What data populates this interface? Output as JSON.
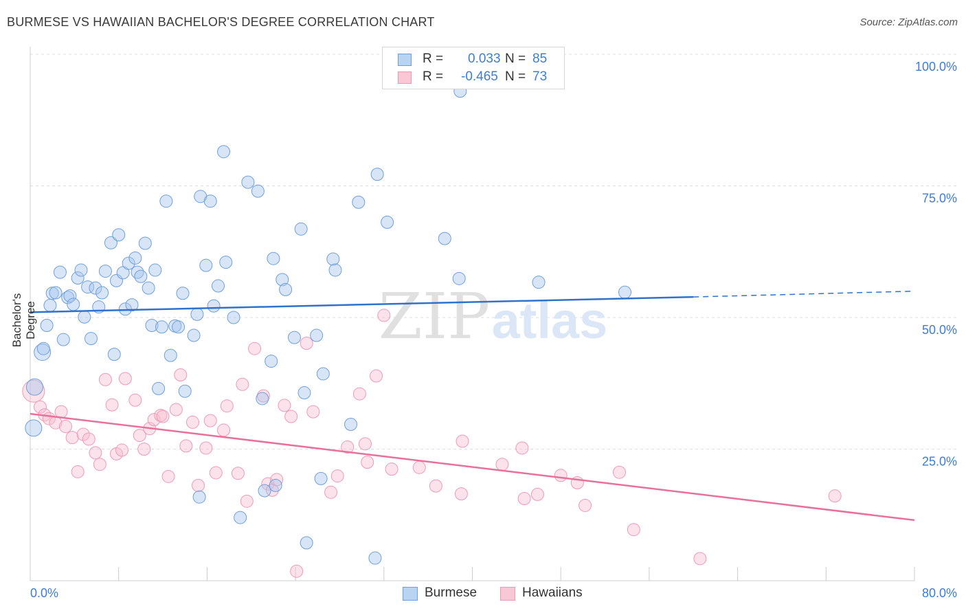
{
  "title": "BURMESE VS HAWAIIAN BACHELOR'S DEGREE CORRELATION CHART",
  "source": "Source: ZipAtlas.com",
  "watermark": {
    "zip": "ZIP",
    "atlas": "atlas"
  },
  "legend": {
    "r_label": "R =",
    "n_label": "N =",
    "rows": [
      {
        "name": "Burmese",
        "r": "0.033",
        "n": "85",
        "fill": "#b9d3f3",
        "stroke": "#6a9ee0"
      },
      {
        "name": "Hawaiians",
        "r": "-0.465",
        "n": "73",
        "fill": "#f9c7d6",
        "stroke": "#ee97b2"
      }
    ]
  },
  "colors": {
    "blue_fill": "rgba(168,198,238,0.45)",
    "blue_stroke": "#6d9fde",
    "blue_line": "#2e72cc",
    "pink_fill": "rgba(248,190,208,0.45)",
    "pink_stroke": "#ef9ab4",
    "pink_line": "#e8709a",
    "grid": "#dddddd",
    "tick_label": "#3b7dd8"
  },
  "chart_data": {
    "type": "scatter",
    "title": "BURMESE VS HAWAIIAN BACHELOR'S DEGREE CORRELATION CHART",
    "xlabel": "",
    "ylabel": "Bachelor's Degree",
    "xlim": [
      0,
      80
    ],
    "ylim": [
      0,
      100
    ],
    "x_tick_labels": [
      "0.0%",
      "80.0%"
    ],
    "y_ticks": [
      25,
      50,
      75,
      100
    ],
    "y_tick_labels": [
      "25.0%",
      "50.0%",
      "75.0%",
      "100.0%"
    ],
    "grid": true,
    "series": [
      {
        "name": "Burmese",
        "r": 0.033,
        "n": 85,
        "trend": {
          "x": [
            0,
            60
          ],
          "y": [
            51.0,
            53.9
          ],
          "dashed_to": [
            80,
            55.0
          ]
        },
        "points": [
          [
            0.4,
            36.8
          ],
          [
            0.3,
            29.0
          ],
          [
            1.1,
            43.4
          ],
          [
            1.2,
            44.1
          ],
          [
            1.5,
            48.5
          ],
          [
            1.8,
            52.3
          ],
          [
            2.0,
            54.6
          ],
          [
            2.3,
            54.7
          ],
          [
            2.7,
            58.6
          ],
          [
            3.0,
            45.8
          ],
          [
            3.4,
            53.8
          ],
          [
            3.6,
            54.1
          ],
          [
            3.9,
            52.5
          ],
          [
            4.3,
            57.5
          ],
          [
            4.6,
            59.0
          ],
          [
            4.9,
            50.1
          ],
          [
            5.2,
            55.8
          ],
          [
            5.5,
            46.0
          ],
          [
            5.9,
            55.6
          ],
          [
            6.2,
            52.0
          ],
          [
            6.5,
            54.7
          ],
          [
            6.8,
            58.8
          ],
          [
            7.3,
            64.2
          ],
          [
            7.6,
            43.0
          ],
          [
            7.8,
            57.0
          ],
          [
            8.0,
            65.7
          ],
          [
            8.4,
            58.5
          ],
          [
            8.6,
            51.6
          ],
          [
            8.9,
            60.3
          ],
          [
            9.2,
            52.4
          ],
          [
            9.5,
            61.3
          ],
          [
            9.7,
            58.6
          ],
          [
            10.0,
            57.8
          ],
          [
            10.4,
            64.1
          ],
          [
            10.7,
            55.6
          ],
          [
            11.0,
            48.5
          ],
          [
            11.3,
            59.0
          ],
          [
            11.6,
            36.5
          ],
          [
            11.9,
            48.2
          ],
          [
            12.3,
            72.1
          ],
          [
            12.7,
            42.8
          ],
          [
            13.1,
            48.4
          ],
          [
            13.4,
            48.2
          ],
          [
            13.8,
            54.6
          ],
          [
            14.0,
            36.0
          ],
          [
            14.8,
            46.6
          ],
          [
            15.1,
            50.6
          ],
          [
            15.4,
            73.0
          ],
          [
            15.3,
            15.9
          ],
          [
            15.9,
            59.9
          ],
          [
            16.3,
            72.1
          ],
          [
            16.6,
            52.2
          ],
          [
            17.0,
            56.0
          ],
          [
            17.5,
            81.5
          ],
          [
            17.7,
            60.5
          ],
          [
            18.4,
            50.0
          ],
          [
            19.0,
            12.0
          ],
          [
            19.7,
            75.7
          ],
          [
            20.6,
            74.0
          ],
          [
            21.0,
            34.6
          ],
          [
            21.2,
            17.1
          ],
          [
            21.8,
            41.7
          ],
          [
            22.0,
            61.2
          ],
          [
            22.8,
            57.2
          ],
          [
            23.1,
            55.3
          ],
          [
            22.2,
            18.1
          ],
          [
            23.9,
            46.2
          ],
          [
            24.5,
            66.8
          ],
          [
            24.8,
            35.7
          ],
          [
            25.0,
            7.2
          ],
          [
            25.9,
            46.6
          ],
          [
            26.3,
            19.4
          ],
          [
            26.5,
            39.3
          ],
          [
            27.4,
            61.1
          ],
          [
            27.6,
            59.0
          ],
          [
            29.0,
            29.7
          ],
          [
            29.7,
            71.9
          ],
          [
            31.2,
            4.3
          ],
          [
            31.4,
            77.2
          ],
          [
            32.3,
            68.1
          ],
          [
            37.5,
            65.0
          ],
          [
            38.9,
            93.0
          ],
          [
            38.8,
            57.4
          ],
          [
            46.0,
            56.7
          ],
          [
            53.8,
            54.8
          ]
        ],
        "sizes": {
          "default": "normal",
          "large": [
            [
              0.4,
              36.8
            ],
            [
              0.3,
              29.0
            ],
            [
              1.1,
              43.4
            ]
          ]
        }
      },
      {
        "name": "Hawaiians",
        "r": -0.465,
        "n": 73,
        "trend": {
          "x": [
            0,
            80
          ],
          "y": [
            31.7,
            11.5
          ]
        },
        "points": [
          [
            0.3,
            36.0
          ],
          [
            0.9,
            33.0
          ],
          [
            1.3,
            31.5
          ],
          [
            1.7,
            30.8
          ],
          [
            2.3,
            30.0
          ],
          [
            2.8,
            32.1
          ],
          [
            3.2,
            29.3
          ],
          [
            3.8,
            27.2
          ],
          [
            4.3,
            20.7
          ],
          [
            4.8,
            27.8
          ],
          [
            5.3,
            26.9
          ],
          [
            5.9,
            24.3
          ],
          [
            6.3,
            22.1
          ],
          [
            6.8,
            38.2
          ],
          [
            7.4,
            33.4
          ],
          [
            7.8,
            24.1
          ],
          [
            8.3,
            24.8
          ],
          [
            8.6,
            38.4
          ],
          [
            9.5,
            34.3
          ],
          [
            9.9,
            27.6
          ],
          [
            10.3,
            25.0
          ],
          [
            10.8,
            28.9
          ],
          [
            11.2,
            30.6
          ],
          [
            11.8,
            31.4
          ],
          [
            12.0,
            31.2
          ],
          [
            12.5,
            19.8
          ],
          [
            13.2,
            32.5
          ],
          [
            13.6,
            39.1
          ],
          [
            14.1,
            25.6
          ],
          [
            14.7,
            30.1
          ],
          [
            15.2,
            18.1
          ],
          [
            15.9,
            25.2
          ],
          [
            16.3,
            30.4
          ],
          [
            16.8,
            20.5
          ],
          [
            17.5,
            28.6
          ],
          [
            17.8,
            33.2
          ],
          [
            18.8,
            20.4
          ],
          [
            19.2,
            37.3
          ],
          [
            19.6,
            15.1
          ],
          [
            20.3,
            44.1
          ],
          [
            21.1,
            35.1
          ],
          [
            21.5,
            18.4
          ],
          [
            21.9,
            17.2
          ],
          [
            22.3,
            19.2
          ],
          [
            23.0,
            33.3
          ],
          [
            23.6,
            31.2
          ],
          [
            24.1,
            1.8
          ],
          [
            25.0,
            45.1
          ],
          [
            25.6,
            32.1
          ],
          [
            27.2,
            16.8
          ],
          [
            27.8,
            19.9
          ],
          [
            28.7,
            25.4
          ],
          [
            29.8,
            35.5
          ],
          [
            30.3,
            26.0
          ],
          [
            30.5,
            22.5
          ],
          [
            31.3,
            38.9
          ],
          [
            32.0,
            50.4
          ],
          [
            32.7,
            21.2
          ],
          [
            35.2,
            21.5
          ],
          [
            36.7,
            18.0
          ],
          [
            39.0,
            16.5
          ],
          [
            39.1,
            26.5
          ],
          [
            42.7,
            22.1
          ],
          [
            44.5,
            25.2
          ],
          [
            44.7,
            15.6
          ],
          [
            45.9,
            16.4
          ],
          [
            48.0,
            20.0
          ],
          [
            49.5,
            18.6
          ],
          [
            50.2,
            14.3
          ],
          [
            53.3,
            20.6
          ],
          [
            54.6,
            9.7
          ],
          [
            60.6,
            4.2
          ],
          [
            72.8,
            16.1
          ]
        ]
      }
    ]
  }
}
